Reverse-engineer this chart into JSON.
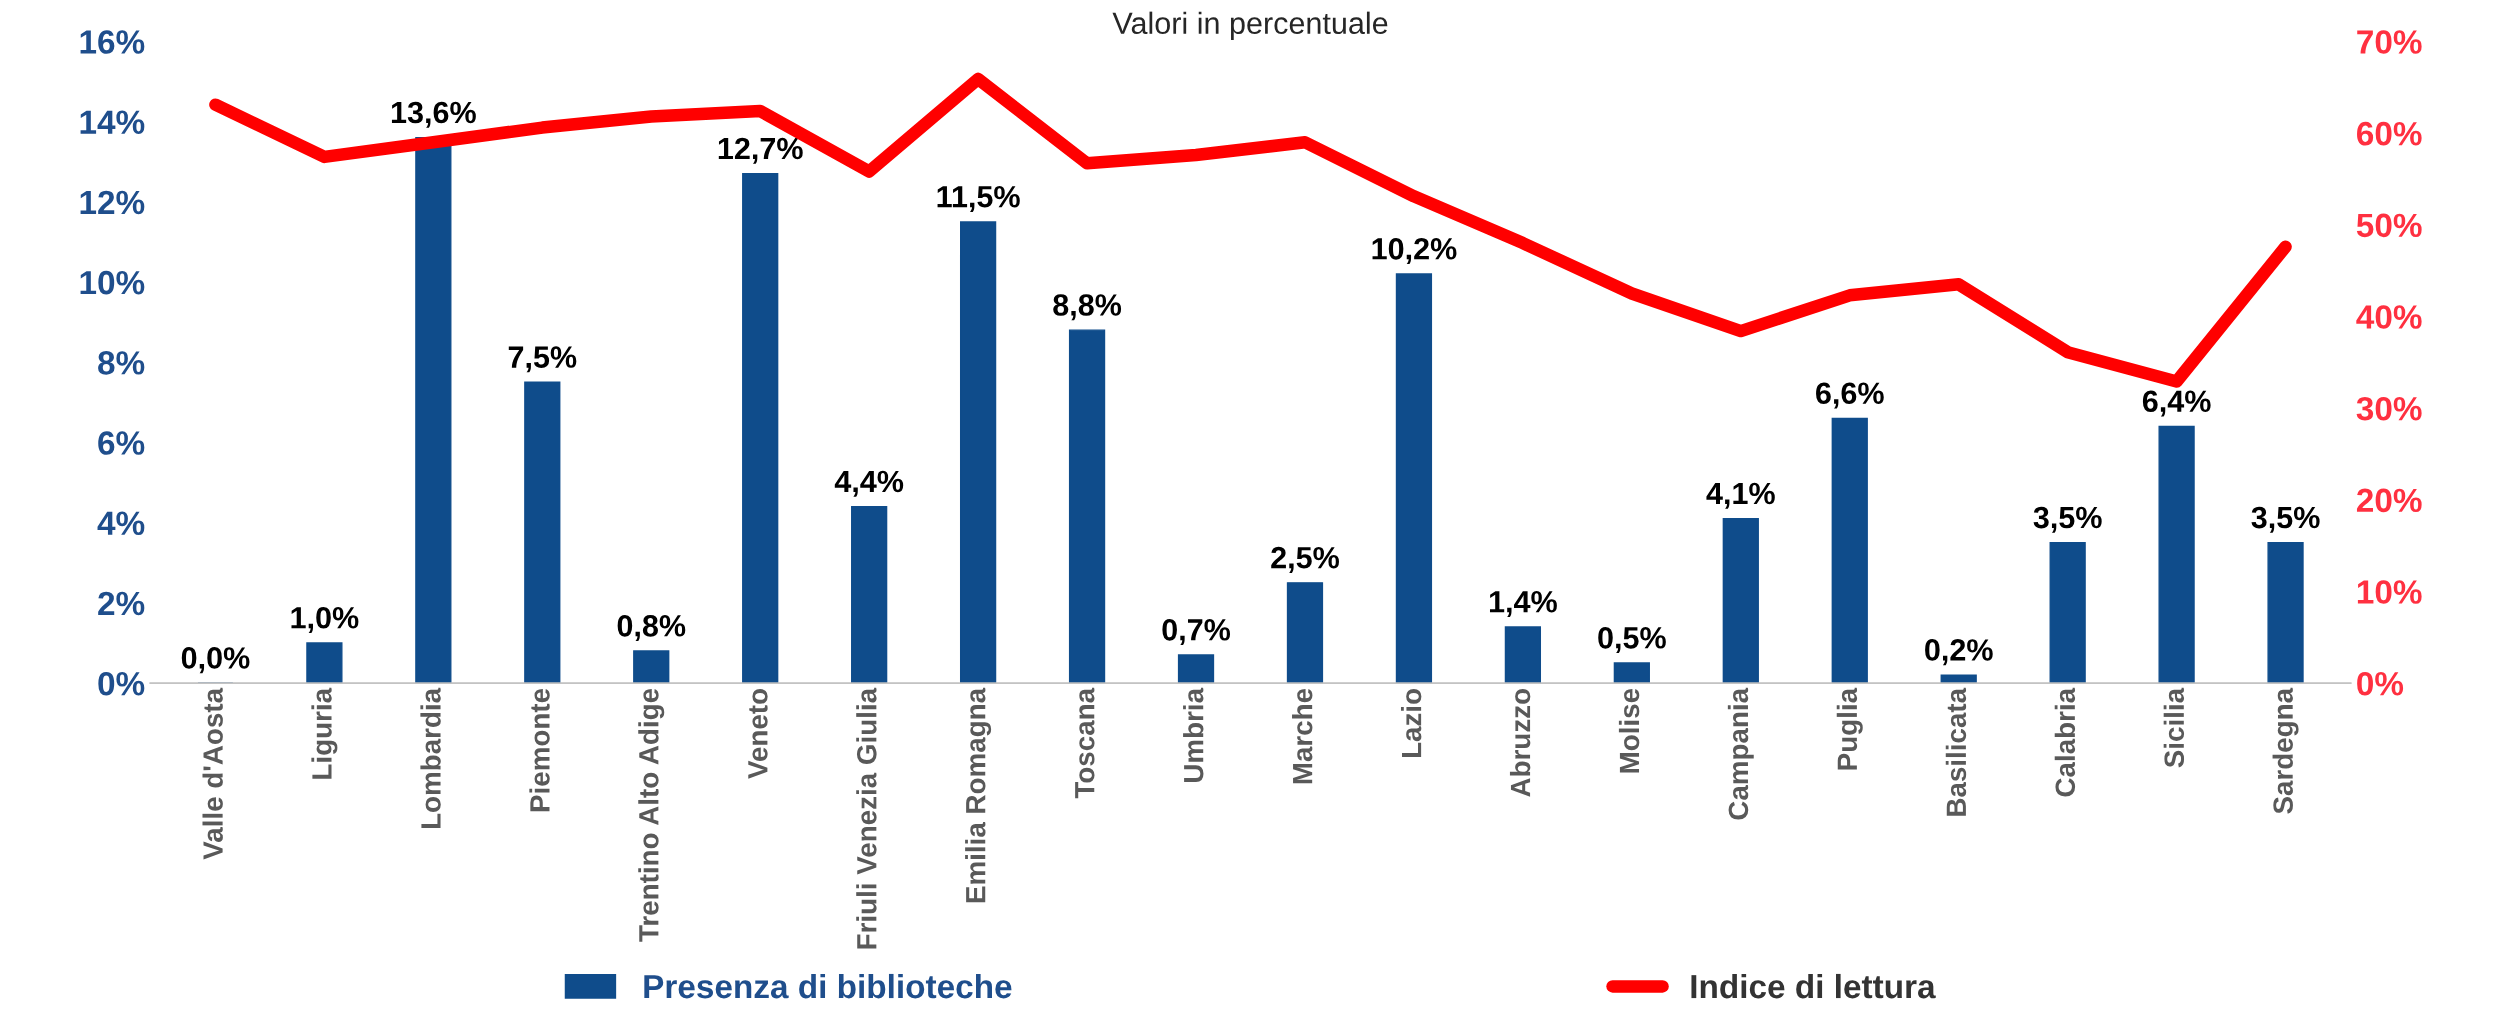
{
  "chart_data": {
    "type": "bar",
    "subtitle": "Valori in percentuale",
    "categories": [
      "Valle d'Aosta",
      "Liguria",
      "Lombardia",
      "Piemonte",
      "Trentino Alto Adige",
      "Veneto",
      "Friuli Venezia Giulia",
      "Emilia Romagna",
      "Toscana",
      "Umbria",
      "Marche",
      "Lazio",
      "Abruzzo",
      "Molise",
      "Campania",
      "Puglia",
      "Basilicata",
      "Calabria",
      "Sicilia",
      "Sardegna"
    ],
    "series": [
      {
        "name": "Presenza di biblioteche",
        "color": "#0f4c8b",
        "values": [
          0.0,
          1.0,
          13.6,
          7.5,
          0.8,
          12.7,
          4.4,
          11.5,
          8.8,
          0.7,
          2.5,
          10.2,
          1.4,
          0.5,
          4.1,
          6.6,
          0.2,
          3.5,
          6.4,
          3.5
        ],
        "value_labels": [
          "0,0%",
          "1,0%",
          "13,6%",
          "7,5%",
          "0,8%",
          "12,7%",
          "4,4%",
          "11,5%",
          "8,8%",
          "0,7%",
          "2,5%",
          "10,2%",
          "1,4%",
          "0,5%",
          "4,1%",
          "6,6%",
          "0,2%",
          "3,5%",
          "6,4%",
          "3,5%"
        ]
      },
      {
        "name": "Indice di lettura",
        "type": "line",
        "axis": "y2",
        "color": "#ff0000",
        "values": [
          63.1,
          57.4,
          59.0,
          60.6,
          61.8,
          62.4,
          55.8,
          65.9,
          56.7,
          57.6,
          59.0,
          53.1,
          48.0,
          42.5,
          38.4,
          42.3,
          43.5,
          36.1,
          32.9,
          47.6
        ]
      }
    ],
    "ylim": [
      0,
      16
    ],
    "yticks": [
      {
        "value": 0,
        "label": "0%"
      },
      {
        "value": 2,
        "label": "2%"
      },
      {
        "value": 4,
        "label": "4%"
      },
      {
        "value": 6,
        "label": "6%"
      },
      {
        "value": 8,
        "label": "8%"
      },
      {
        "value": 10,
        "label": "10%"
      },
      {
        "value": 12,
        "label": "12%"
      },
      {
        "value": 14,
        "label": "14%"
      },
      {
        "value": 16,
        "label": "16%"
      }
    ],
    "y2lim": [
      0,
      70
    ],
    "y2ticks": [
      {
        "value": 0,
        "label": "0%"
      },
      {
        "value": 10,
        "label": "10%"
      },
      {
        "value": 20,
        "label": "20%"
      },
      {
        "value": 30,
        "label": "30%"
      },
      {
        "value": 40,
        "label": "40%"
      },
      {
        "value": 50,
        "label": "50%"
      },
      {
        "value": 60,
        "label": "60%"
      },
      {
        "value": 70,
        "label": "70%"
      }
    ],
    "legend": "bottom",
    "grid": false,
    "marker": "none",
    "line_style": "solid"
  }
}
